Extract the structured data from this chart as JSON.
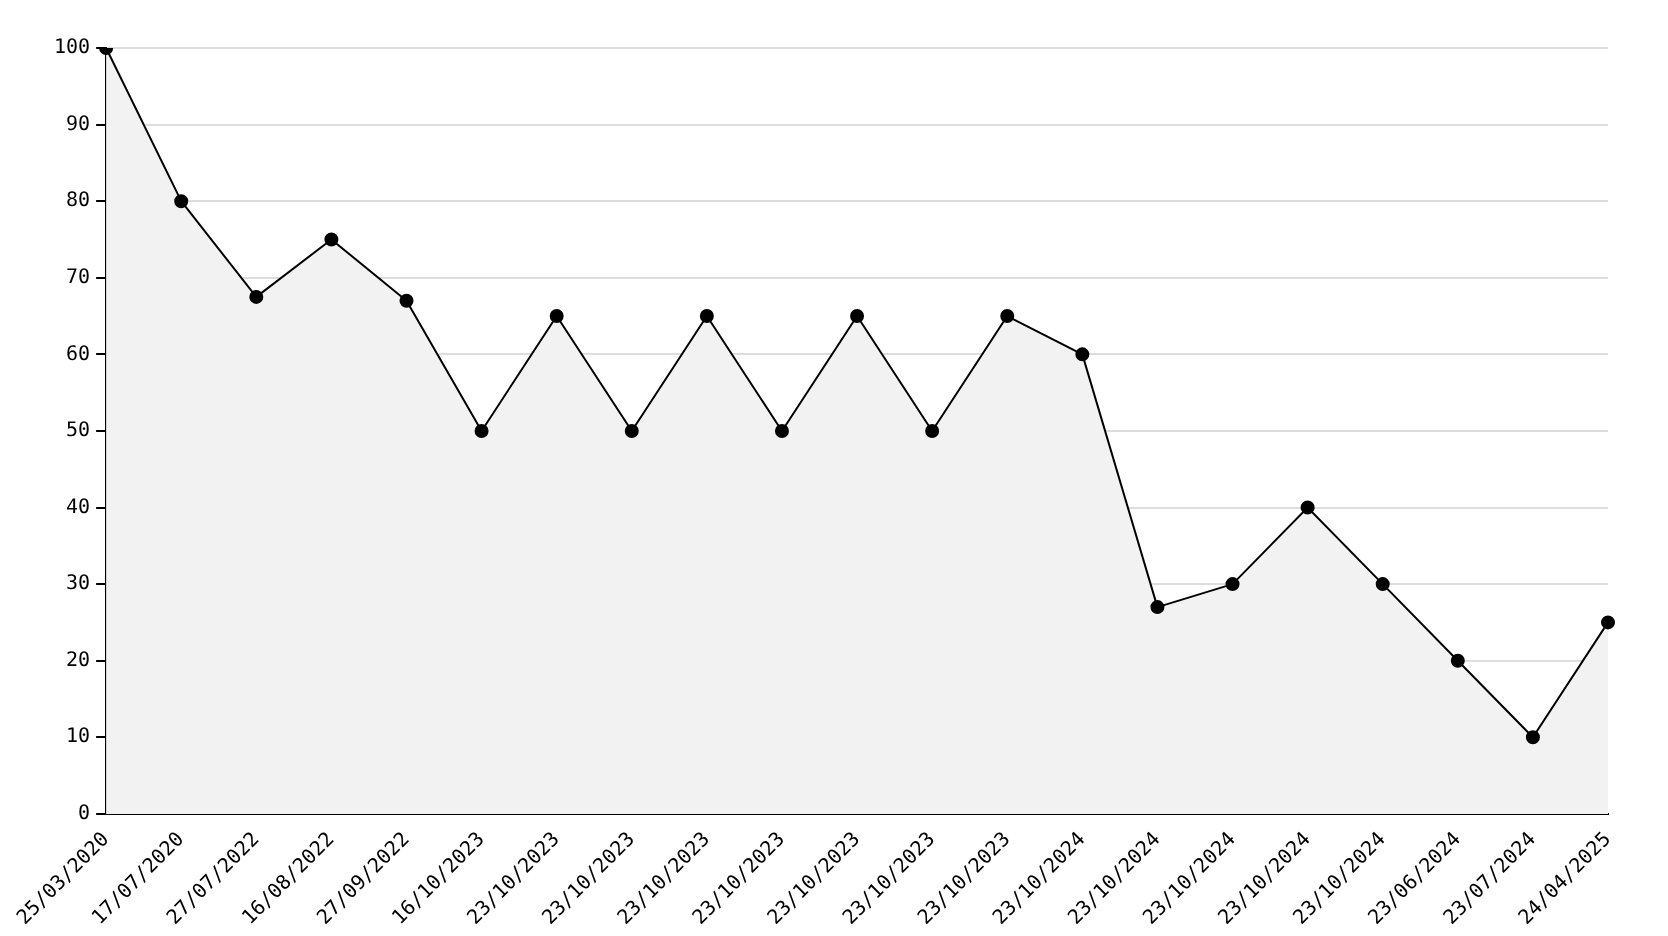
{
  "chart_data": {
    "type": "area",
    "categories": [
      "25/03/2020",
      "17/07/2020",
      "27/07/2022",
      "16/08/2022",
      "27/09/2022",
      "16/10/2023",
      "23/10/2023",
      "23/10/2023",
      "23/10/2023",
      "23/10/2023",
      "23/10/2023",
      "23/10/2023",
      "23/10/2023",
      "23/10/2024",
      "23/10/2024",
      "23/10/2024",
      "23/10/2024",
      "23/10/2024",
      "23/06/2024",
      "23/07/2024",
      "24/04/2025"
    ],
    "series": [
      {
        "color": "#000000",
        "values": [
          100,
          80,
          67.5,
          75,
          67,
          50,
          65,
          50,
          65,
          50,
          65,
          50,
          65,
          60,
          27,
          30,
          40,
          30,
          20,
          10,
          25
        ]
      }
    ],
    "ylim": [
      0,
      100
    ],
    "yticks": [
      0,
      10,
      20,
      30,
      40,
      50,
      60,
      70,
      80,
      90,
      100
    ],
    "grid": "y",
    "marker": "circle",
    "legend": false
  }
}
